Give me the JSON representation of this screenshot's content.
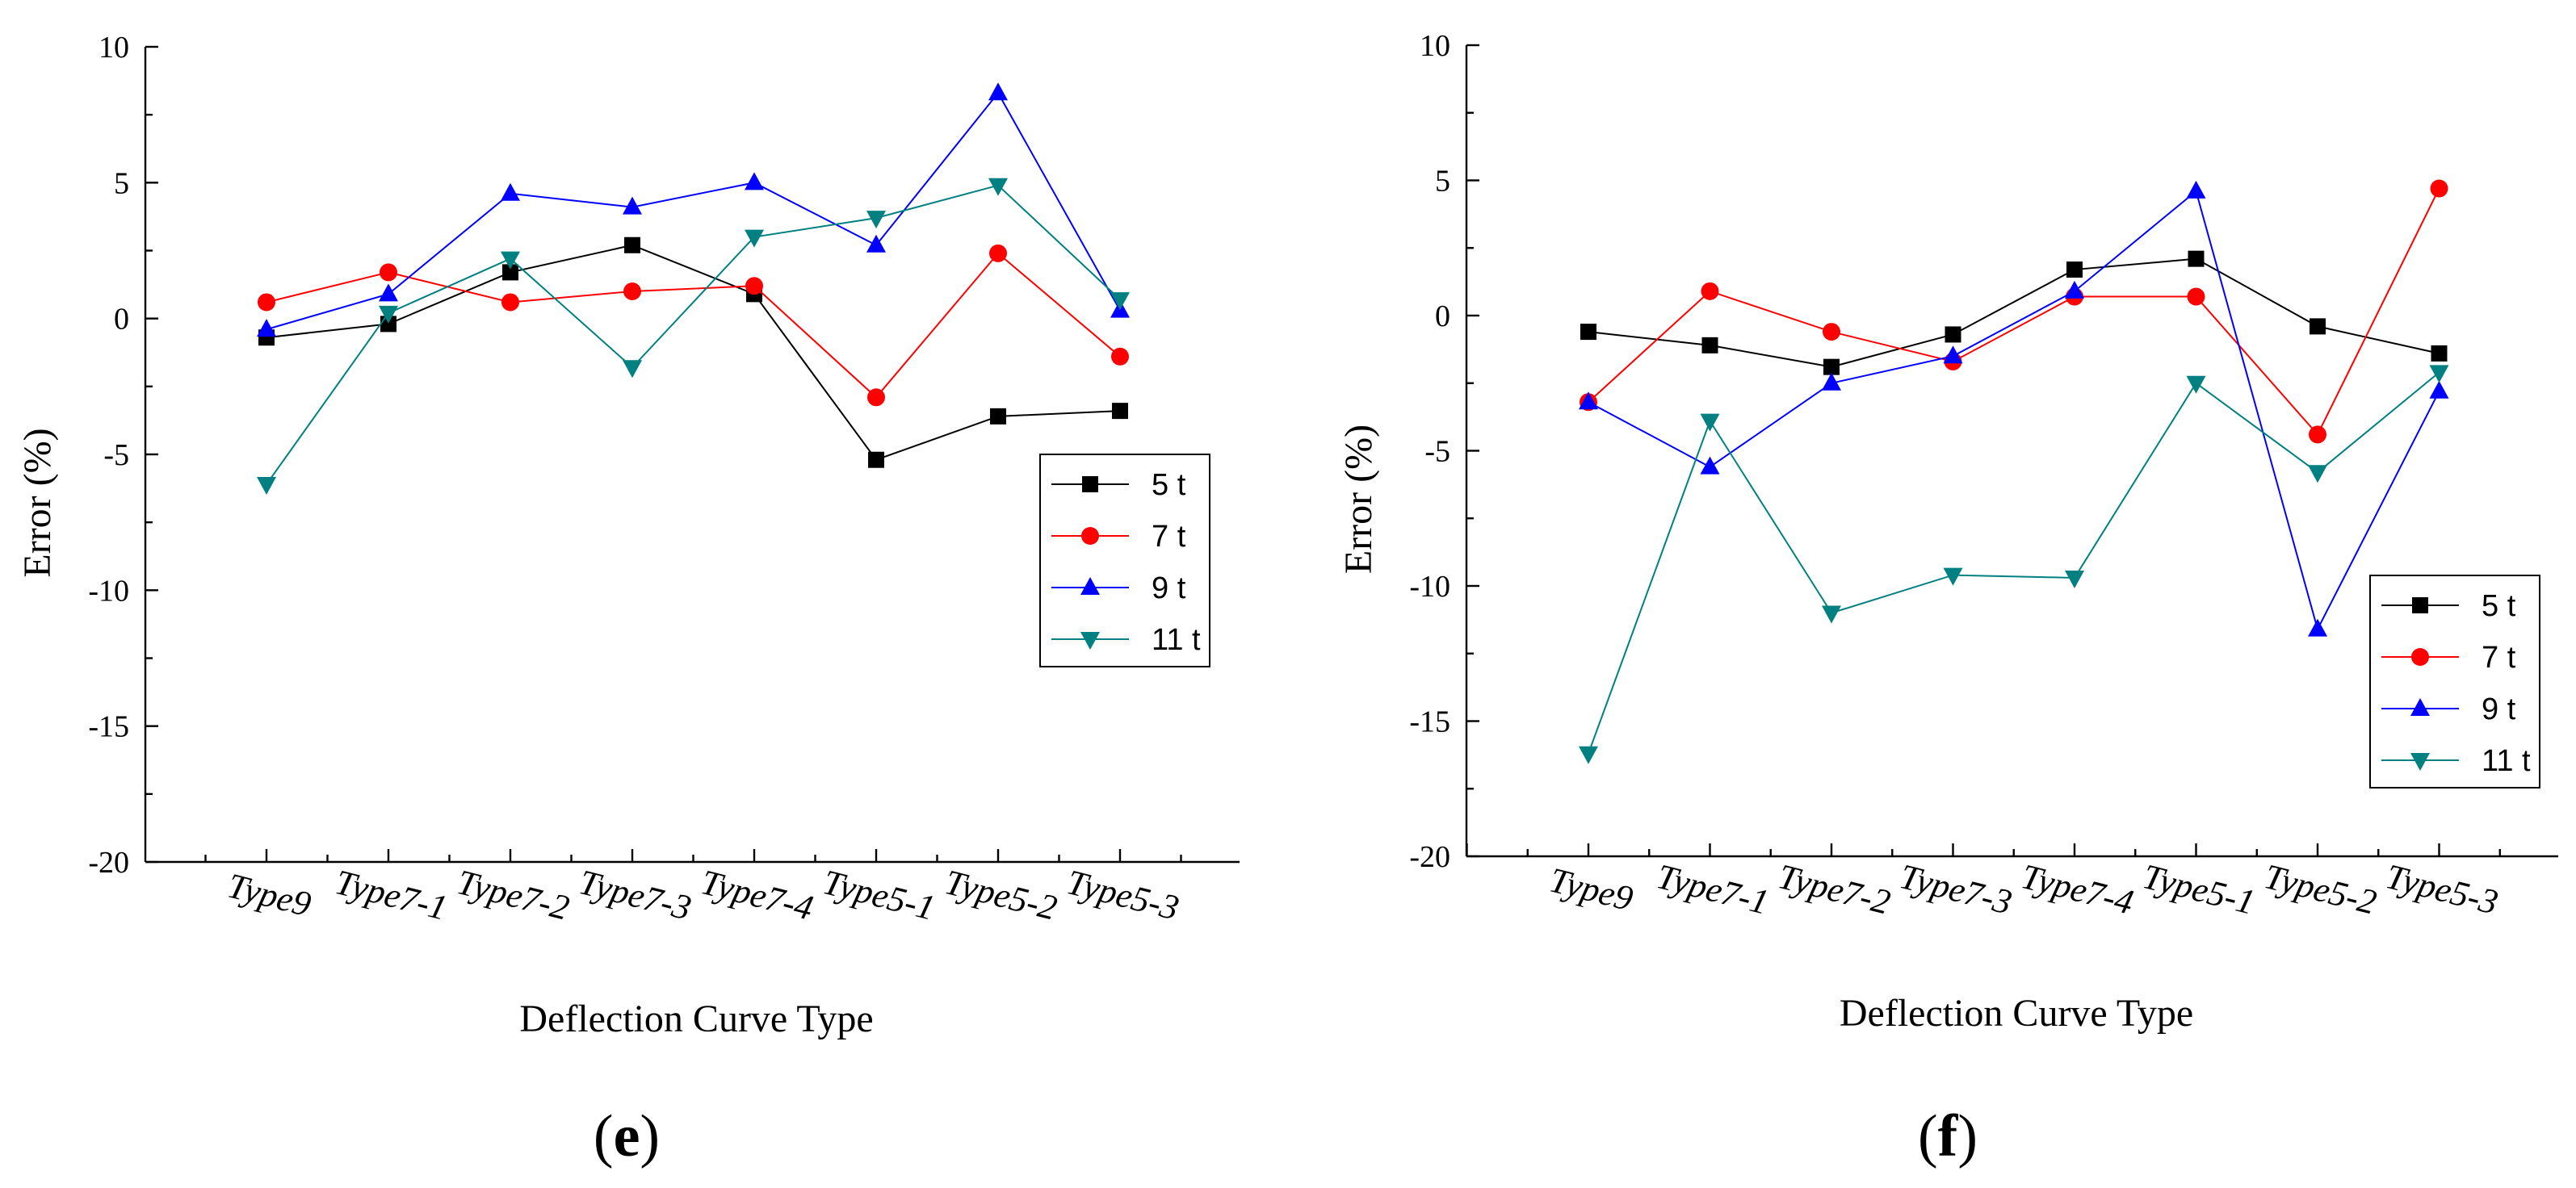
{
  "chart_data": [
    {
      "type": "line",
      "panel_label": "e",
      "categories": [
        "Type9",
        "Type7-1",
        "Type7-2",
        "Type7-3",
        "Type7-4",
        "Type5-1",
        "Type5-2",
        "Type5-3"
      ],
      "xlabel": "Deflection Curve Type",
      "ylabel": "Error (%)",
      "ylim": [
        -20,
        10
      ],
      "yticks": [
        -20,
        -15,
        -10,
        -5,
        0,
        5,
        10
      ],
      "legend_position": "right",
      "series": [
        {
          "name": "5 t",
          "color": "#000000",
          "marker": "square",
          "values": [
            -0.7,
            -0.2,
            1.7,
            2.7,
            0.9,
            -5.2,
            -3.6,
            -3.4
          ]
        },
        {
          "name": "7 t",
          "color": "#ff0000",
          "marker": "circle",
          "values": [
            0.6,
            1.7,
            0.6,
            1.0,
            1.2,
            -2.9,
            2.4,
            -1.4
          ]
        },
        {
          "name": "9 t",
          "color": "#0000ff",
          "marker": "triangle-up",
          "values": [
            -0.4,
            0.9,
            4.6,
            4.1,
            5.0,
            2.7,
            8.3,
            0.3
          ]
        },
        {
          "name": "11 t",
          "color": "#008080",
          "marker": "triangle-down",
          "values": [
            -6.1,
            0.2,
            2.2,
            -1.8,
            3.0,
            3.7,
            4.9,
            0.7
          ]
        }
      ]
    },
    {
      "type": "line",
      "panel_label": "f",
      "categories": [
        "Type9",
        "Type7-1",
        "Type7-2",
        "Type7-3",
        "Type7-4",
        "Type5-1",
        "Type5-2",
        "Type5-3"
      ],
      "xlabel": "Deflection Curve Type",
      "ylabel": "Error (%)",
      "ylim": [
        -20,
        10
      ],
      "yticks": [
        -20,
        -15,
        -10,
        -5,
        0,
        5,
        10
      ],
      "legend_position": "bottom-right",
      "series": [
        {
          "name": "5 t",
          "color": "#000000",
          "marker": "square",
          "values": [
            -0.6,
            -1.1,
            -1.9,
            -0.7,
            1.7,
            2.1,
            -0.4,
            -1.4
          ]
        },
        {
          "name": "7 t",
          "color": "#ff0000",
          "marker": "circle",
          "values": [
            -3.2,
            0.9,
            -0.6,
            -1.7,
            0.7,
            0.7,
            -4.4,
            4.7
          ]
        },
        {
          "name": "9 t",
          "color": "#0000ff",
          "marker": "triangle-up",
          "values": [
            -3.2,
            -5.6,
            -2.5,
            -1.5,
            0.9,
            4.6,
            -11.6,
            -2.8
          ]
        },
        {
          "name": "11 t",
          "color": "#008080",
          "marker": "triangle-down",
          "values": [
            -16.2,
            -3.9,
            -11.0,
            -9.6,
            -9.7,
            -2.5,
            -5.8,
            -2.1
          ]
        }
      ]
    }
  ]
}
